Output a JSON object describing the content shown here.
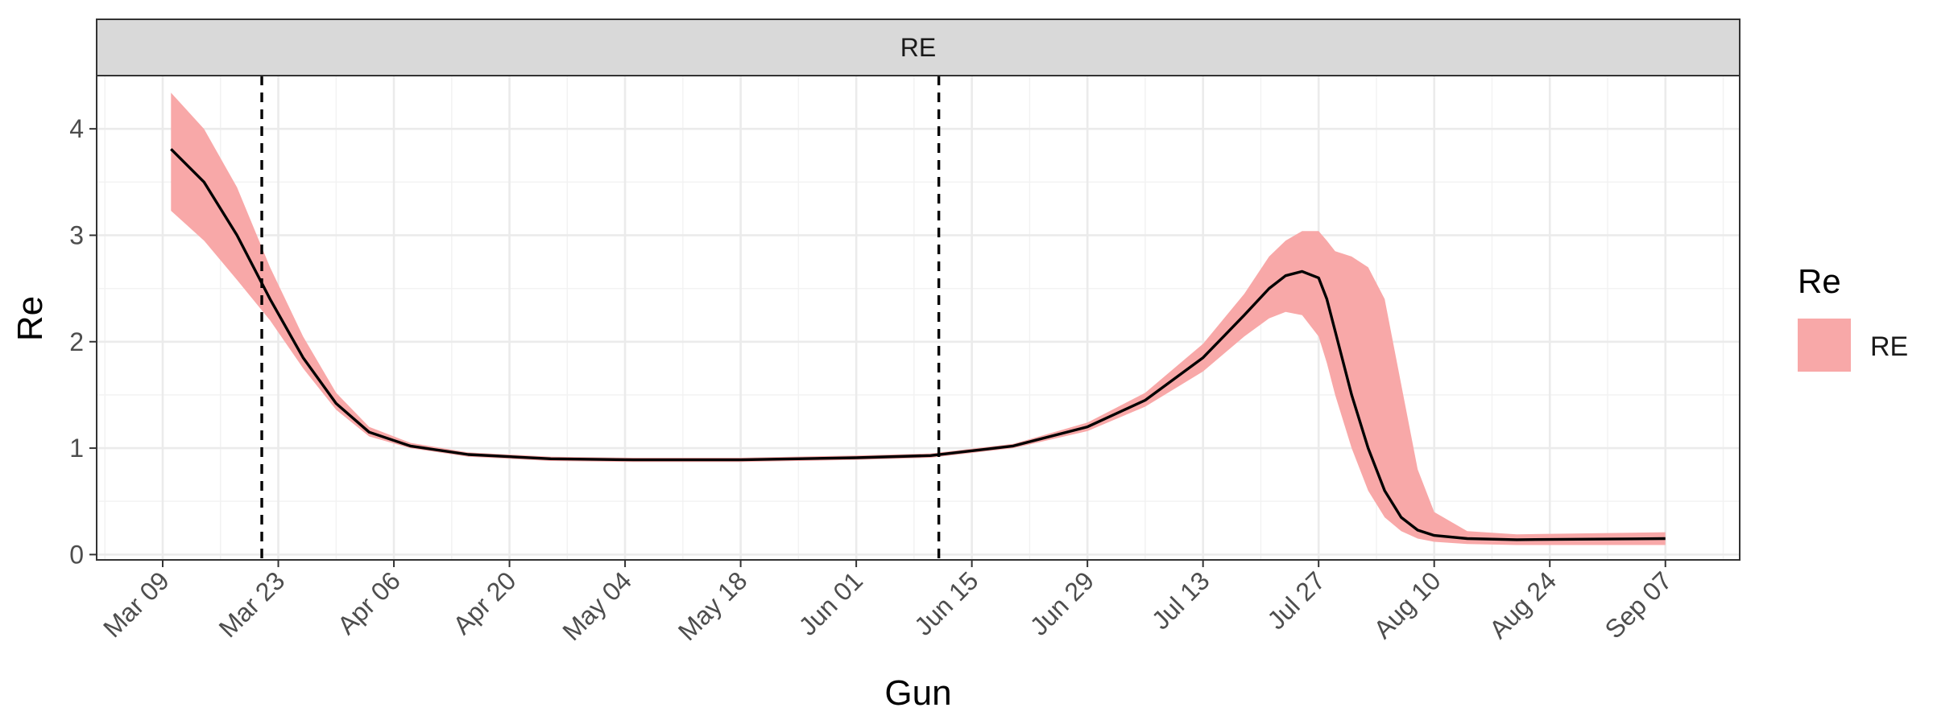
{
  "chart_data": {
    "type": "area",
    "facet_label": "RE",
    "xlabel": "Gun",
    "ylabel": "Re",
    "x_ticks": [
      "Mar 09",
      "Mar 23",
      "Apr 06",
      "Apr 20",
      "May 04",
      "May 18",
      "Jun 01",
      "Jun 15",
      "Jun 29",
      "Jul 13",
      "Jul 27",
      "Aug 10",
      "Aug 24",
      "Sep 07"
    ],
    "y_ticks": [
      "0",
      "1",
      "2",
      "3",
      "4"
    ],
    "xlim": [
      "2020-03-01",
      "2020-09-16"
    ],
    "ylim": [
      -0.05,
      4.5
    ],
    "grid": true,
    "legend": {
      "title": "Re",
      "position": "right",
      "entries": [
        {
          "label": "RE",
          "color": "#f8a8a8"
        }
      ]
    },
    "vlines": [
      "2020-03-21",
      "2020-06-11"
    ],
    "series": [
      {
        "name": "RE",
        "line_color": "#000000",
        "ribbon_color": "#f8a8a8",
        "points": [
          {
            "x": "2020-03-10",
            "y": 3.81,
            "lo": 3.23,
            "hi": 4.34
          },
          {
            "x": "2020-03-14",
            "y": 3.5,
            "lo": 2.95,
            "hi": 4.0
          },
          {
            "x": "2020-03-18",
            "y": 3.0,
            "lo": 2.58,
            "hi": 3.45
          },
          {
            "x": "2020-03-22",
            "y": 2.4,
            "lo": 2.2,
            "hi": 2.7
          },
          {
            "x": "2020-03-26",
            "y": 1.85,
            "lo": 1.75,
            "hi": 2.05
          },
          {
            "x": "2020-03-30",
            "y": 1.42,
            "lo": 1.36,
            "hi": 1.52
          },
          {
            "x": "2020-04-03",
            "y": 1.15,
            "lo": 1.11,
            "hi": 1.2
          },
          {
            "x": "2020-04-08",
            "y": 1.02,
            "lo": 1.0,
            "hi": 1.05
          },
          {
            "x": "2020-04-15",
            "y": 0.94,
            "lo": 0.92,
            "hi": 0.96
          },
          {
            "x": "2020-04-25",
            "y": 0.9,
            "lo": 0.88,
            "hi": 0.92
          },
          {
            "x": "2020-05-05",
            "y": 0.89,
            "lo": 0.87,
            "hi": 0.91
          },
          {
            "x": "2020-05-18",
            "y": 0.89,
            "lo": 0.87,
            "hi": 0.91
          },
          {
            "x": "2020-06-01",
            "y": 0.91,
            "lo": 0.89,
            "hi": 0.93
          },
          {
            "x": "2020-06-10",
            "y": 0.93,
            "lo": 0.91,
            "hi": 0.95
          },
          {
            "x": "2020-06-20",
            "y": 1.02,
            "lo": 1.0,
            "hi": 1.04
          },
          {
            "x": "2020-06-29",
            "y": 1.2,
            "lo": 1.16,
            "hi": 1.24
          },
          {
            "x": "2020-07-06",
            "y": 1.45,
            "lo": 1.39,
            "hi": 1.52
          },
          {
            "x": "2020-07-13",
            "y": 1.85,
            "lo": 1.72,
            "hi": 1.98
          },
          {
            "x": "2020-07-18",
            "y": 2.25,
            "lo": 2.05,
            "hi": 2.45
          },
          {
            "x": "2020-07-21",
            "y": 2.5,
            "lo": 2.22,
            "hi": 2.8
          },
          {
            "x": "2020-07-23",
            "y": 2.62,
            "lo": 2.28,
            "hi": 2.95
          },
          {
            "x": "2020-07-25",
            "y": 2.66,
            "lo": 2.25,
            "hi": 3.04
          },
          {
            "x": "2020-07-27",
            "y": 2.6,
            "lo": 2.05,
            "hi": 3.04
          },
          {
            "x": "2020-07-28",
            "y": 2.4,
            "lo": 1.8,
            "hi": 2.95
          },
          {
            "x": "2020-07-29",
            "y": 2.1,
            "lo": 1.5,
            "hi": 2.85
          },
          {
            "x": "2020-07-31",
            "y": 1.5,
            "lo": 1.0,
            "hi": 2.8
          },
          {
            "x": "2020-08-02",
            "y": 1.0,
            "lo": 0.6,
            "hi": 2.7
          },
          {
            "x": "2020-08-04",
            "y": 0.6,
            "lo": 0.35,
            "hi": 2.4
          },
          {
            "x": "2020-08-06",
            "y": 0.35,
            "lo": 0.22,
            "hi": 1.6
          },
          {
            "x": "2020-08-08",
            "y": 0.23,
            "lo": 0.15,
            "hi": 0.8
          },
          {
            "x": "2020-08-10",
            "y": 0.18,
            "lo": 0.12,
            "hi": 0.4
          },
          {
            "x": "2020-08-14",
            "y": 0.15,
            "lo": 0.1,
            "hi": 0.22
          },
          {
            "x": "2020-08-20",
            "y": 0.14,
            "lo": 0.09,
            "hi": 0.19
          },
          {
            "x": "2020-09-07",
            "y": 0.15,
            "lo": 0.09,
            "hi": 0.21
          }
        ]
      }
    ]
  }
}
